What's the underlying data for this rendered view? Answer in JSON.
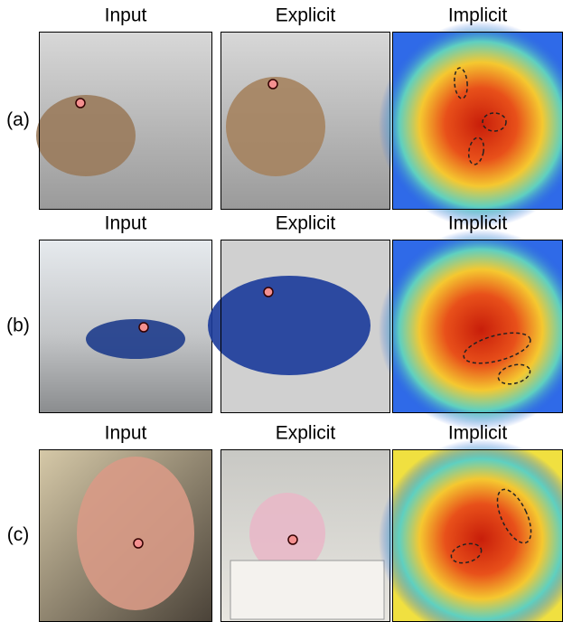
{
  "rows": [
    {
      "label": "(a)",
      "columns": [
        "Input",
        "Explicit",
        "Implicit"
      ]
    },
    {
      "label": "(b)",
      "columns": [
        "Input",
        "Explicit",
        "Implicit"
      ]
    },
    {
      "label": "(c)",
      "columns": [
        "Input",
        "Explicit",
        "Implicit"
      ]
    }
  ]
}
